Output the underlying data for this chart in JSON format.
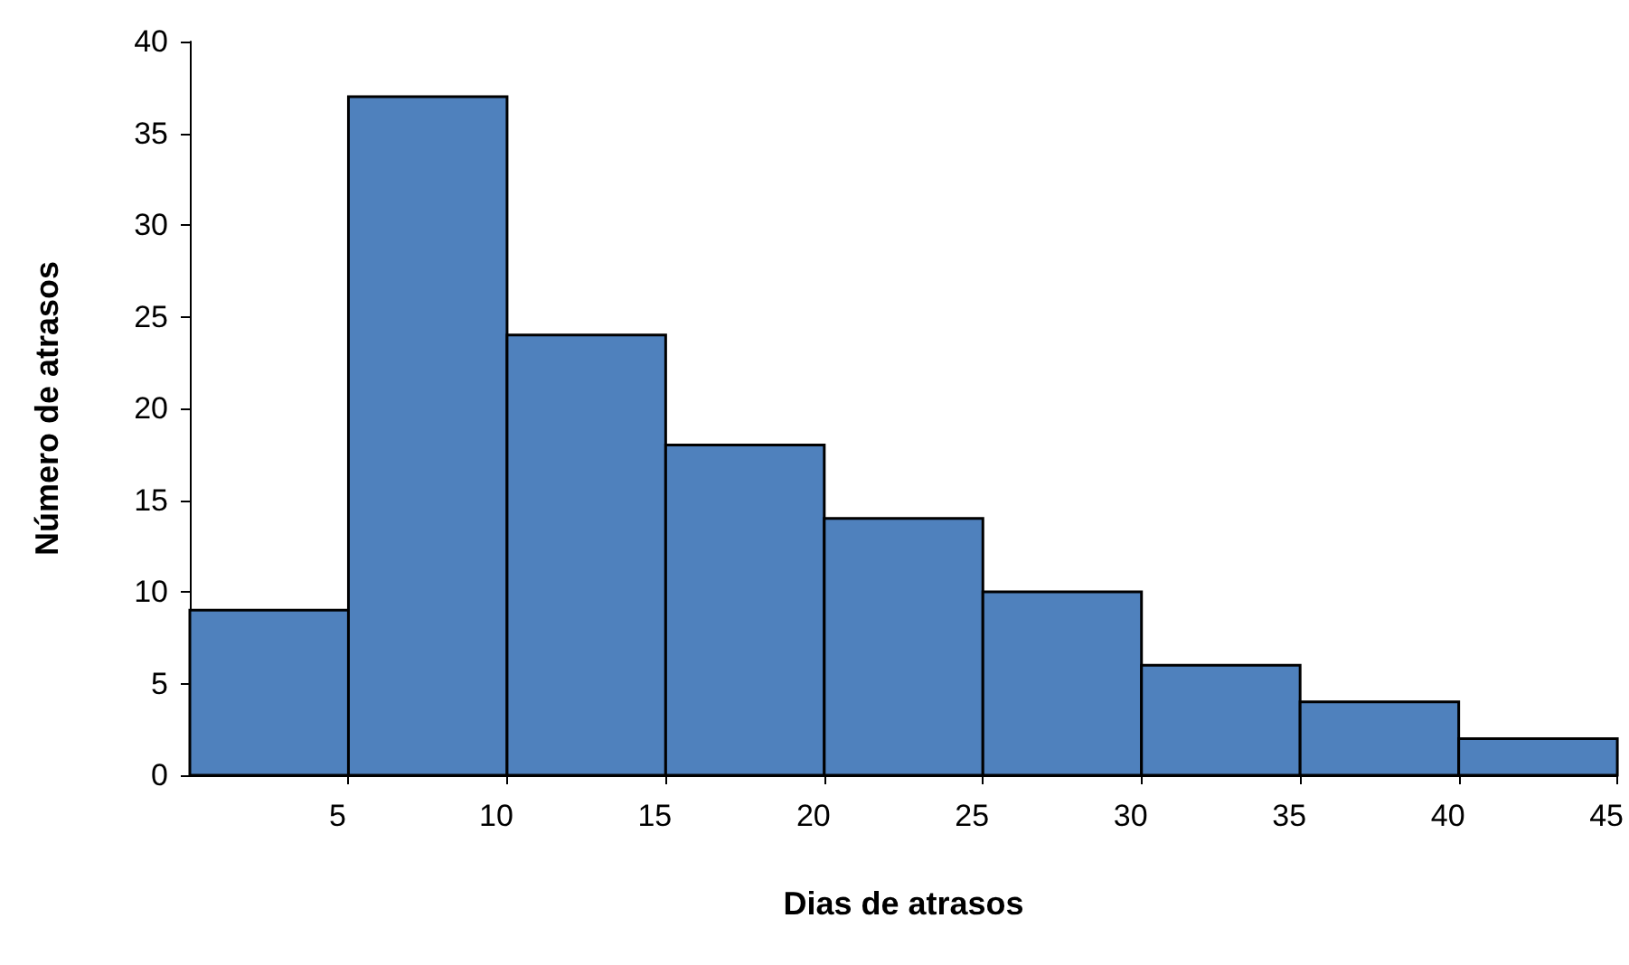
{
  "chart_data": {
    "type": "histogram",
    "xlabel": "Dias de atrasos",
    "ylabel": "Número de atrasos",
    "bins": [
      0,
      5,
      10,
      15,
      20,
      25,
      30,
      35,
      40,
      45
    ],
    "values": [
      9,
      37,
      24,
      18,
      14,
      10,
      6,
      4,
      2
    ],
    "color": "#4f81bd",
    "xlim": [
      0,
      45
    ],
    "xticks": [
      5,
      10,
      15,
      20,
      25,
      30,
      35,
      40,
      45
    ],
    "ylim": [
      0,
      40
    ],
    "yticks": [
      0,
      5,
      10,
      15,
      20,
      25,
      30,
      35,
      40
    ],
    "grid": false
  }
}
